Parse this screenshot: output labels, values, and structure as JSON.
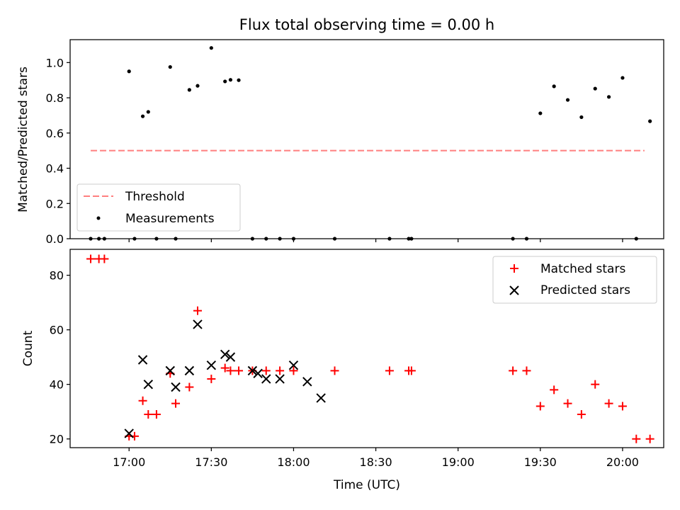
{
  "chart_data": {
    "title": "Flux total observing time = 0.00 h",
    "xlabel": "Time (UTC)",
    "x_ticks": [
      "17:00",
      "17:30",
      "18:00",
      "18:30",
      "19:00",
      "19:30",
      "20:00"
    ],
    "top": {
      "type": "scatter",
      "ylabel": "Matched/Predicted stars",
      "ylim": [
        0,
        1.13
      ],
      "y_ticks": [
        "0.0",
        "0.2",
        "0.4",
        "0.6",
        "0.8",
        "1.0"
      ],
      "legend_position": "lower-left",
      "threshold": {
        "name": "Threshold",
        "value": 0.5,
        "x_start": "16:46",
        "x_end": "20:08",
        "color": "#ff7f7f",
        "style": "dashed"
      },
      "measurements": {
        "name": "Measurements",
        "color": "#000000",
        "x": [
          "16:46",
          "16:49",
          "16:51",
          "17:00",
          "17:02",
          "17:05",
          "17:07",
          "17:10",
          "17:15",
          "17:17",
          "17:22",
          "17:25",
          "17:30",
          "17:35",
          "17:37",
          "17:40",
          "17:45",
          "17:50",
          "17:55",
          "18:00",
          "18:15",
          "18:35",
          "18:42",
          "18:43",
          "19:20",
          "19:25",
          "19:30",
          "19:35",
          "19:40",
          "19:45",
          "19:50",
          "19:55",
          "20:00",
          "20:05",
          "20:10"
        ],
        "y": [
          0,
          0,
          0,
          0.95,
          0,
          0.695,
          0.72,
          0,
          0.975,
          0,
          0.845,
          0.868,
          1.083,
          0.893,
          0.902,
          0.9,
          0,
          0,
          0,
          0,
          0,
          0,
          0,
          0,
          0,
          0,
          0.712,
          0.865,
          0.788,
          0.69,
          0.852,
          0.805,
          0.913,
          0,
          0.667
        ]
      }
    },
    "bottom": {
      "type": "scatter",
      "ylabel": "Count",
      "ylim": [
        16.8,
        89.5
      ],
      "y_ticks": [
        "20",
        "40",
        "60",
        "80"
      ],
      "legend_position": "top-right",
      "series": [
        {
          "name": "Matched stars",
          "marker": "+",
          "color": "#ff0000",
          "x": [
            "16:46",
            "16:49",
            "16:51",
            "17:00",
            "17:02",
            "17:05",
            "17:07",
            "17:10",
            "17:15",
            "17:17",
            "17:22",
            "17:25",
            "17:30",
            "17:35",
            "17:37",
            "17:40",
            "17:45",
            "17:50",
            "17:55",
            "18:00",
            "18:15",
            "18:35",
            "18:42",
            "18:43",
            "19:20",
            "19:25",
            "19:30",
            "19:35",
            "19:40",
            "19:45",
            "19:50",
            "19:55",
            "20:00",
            "20:05",
            "20:10"
          ],
          "y": [
            86,
            86,
            86,
            21,
            21,
            34,
            29,
            29,
            44,
            33,
            39,
            67,
            42,
            46,
            45,
            45,
            45,
            45,
            45,
            45,
            45,
            45,
            45,
            45,
            45,
            45,
            32,
            38,
            33,
            29,
            40,
            33,
            32,
            20,
            20
          ]
        },
        {
          "name": "Predicted stars",
          "marker": "x",
          "color": "#000000",
          "x": [
            "17:00",
            "17:05",
            "17:07",
            "17:15",
            "17:17",
            "17:22",
            "17:25",
            "17:30",
            "17:35",
            "17:37",
            "17:45",
            "17:47",
            "17:50",
            "17:55",
            "18:00",
            "18:05",
            "18:10"
          ],
          "y": [
            22,
            49,
            40,
            45,
            39,
            45,
            62,
            47,
            51,
            50,
            45,
            44,
            42,
            42,
            47,
            41,
            35
          ]
        }
      ]
    }
  }
}
